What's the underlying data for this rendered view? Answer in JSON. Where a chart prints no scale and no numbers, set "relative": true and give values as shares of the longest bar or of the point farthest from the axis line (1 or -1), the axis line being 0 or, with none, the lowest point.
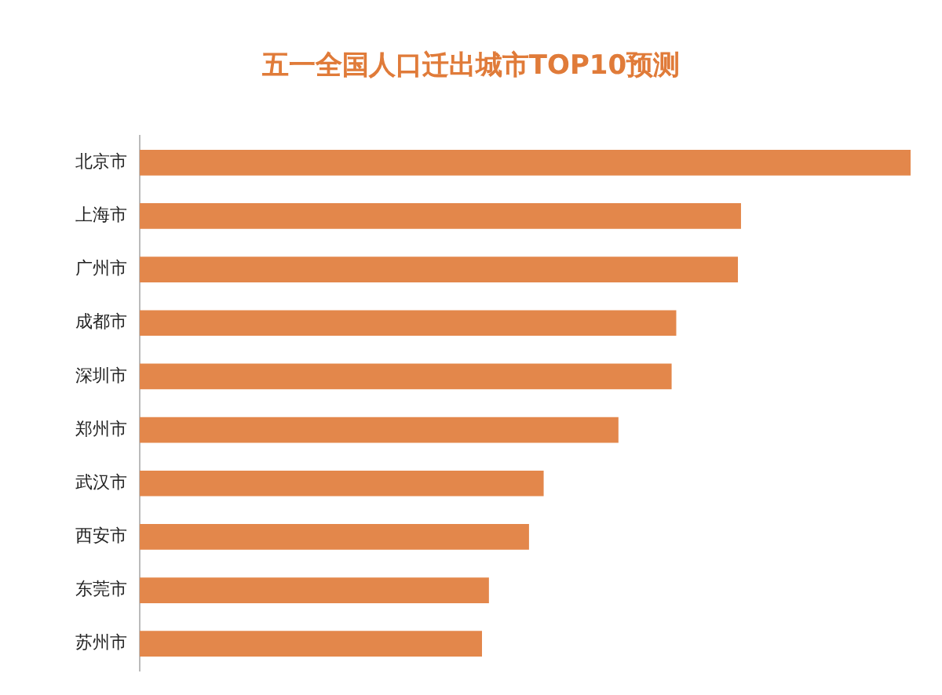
{
  "chart_data": {
    "type": "bar",
    "title": "五一全国人口迁出城市TOP10预测",
    "orientation": "horizontal",
    "relative": true,
    "categories": [
      "北京市",
      "上海市",
      "广州市",
      "成都市",
      "深圳市",
      "郑州市",
      "武汉市",
      "西安市",
      "东莞市",
      "苏州市"
    ],
    "values": [
      1,
      0.78,
      0.776,
      0.696,
      0.69,
      0.621,
      0.524,
      0.505,
      0.453,
      0.444
    ],
    "color": "#e3874b"
  }
}
